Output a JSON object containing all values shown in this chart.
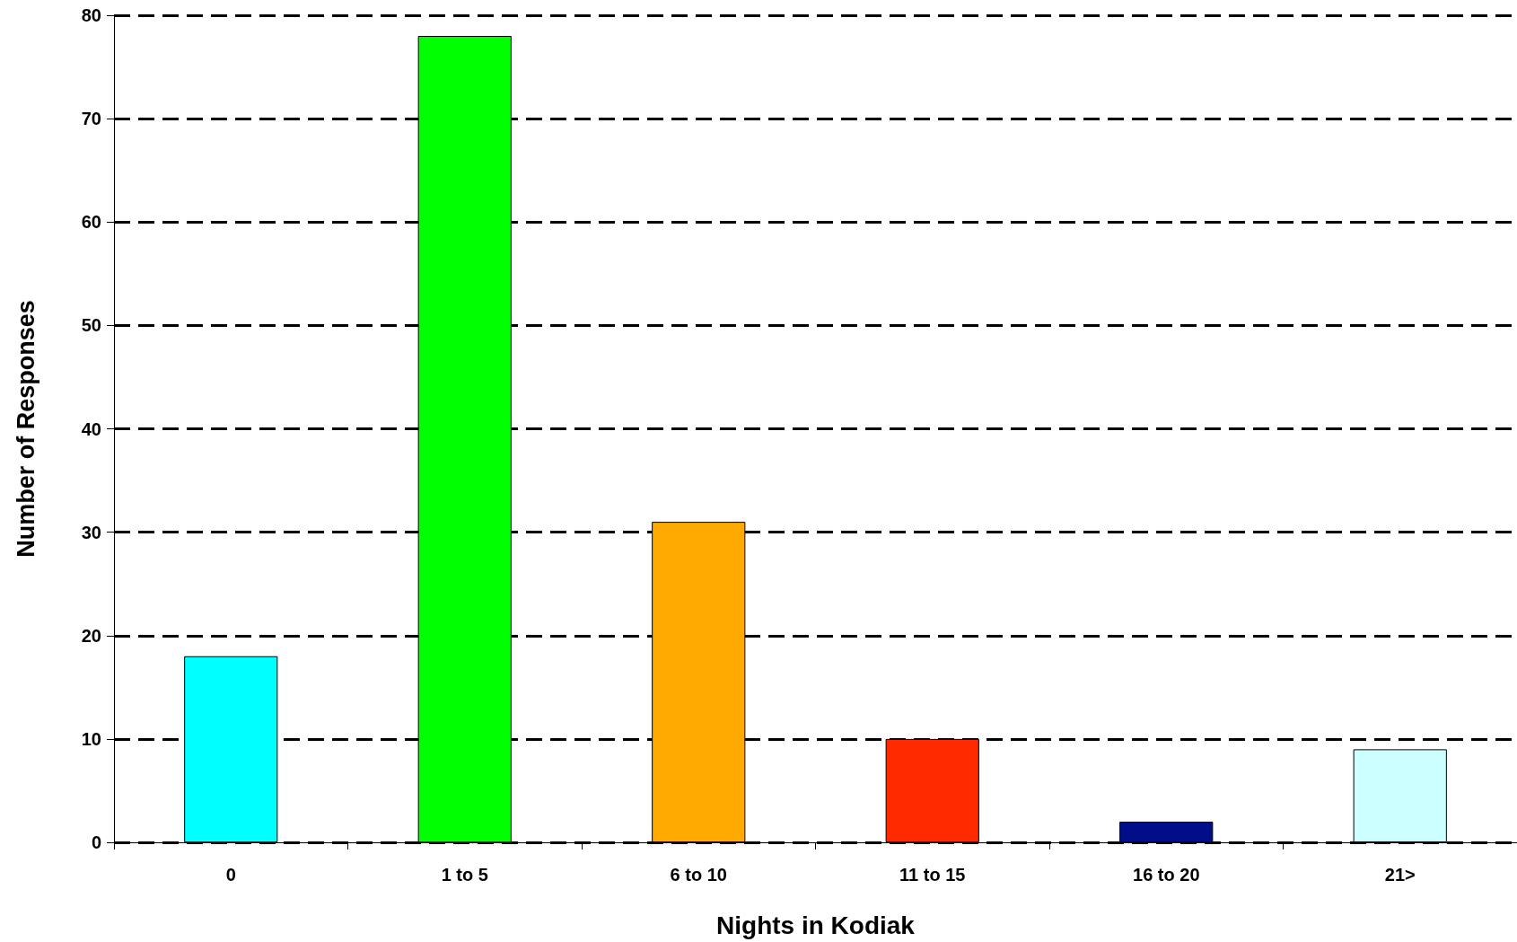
{
  "chart_data": {
    "type": "bar",
    "xlabel": "Nights in Kodiak",
    "ylabel": "Number of Responses",
    "categories": [
      "0",
      "1 to 5",
      "6 to 10",
      "11 to 15",
      "16 to 20",
      "21>"
    ],
    "values": [
      18,
      78,
      31,
      10,
      2,
      9
    ],
    "colors": [
      "#00ffff",
      "#00ff00",
      "#ffaa00",
      "#ff2a00",
      "#000e8a",
      "#ccffff"
    ],
    "ylim": [
      0,
      80
    ],
    "yticks": [
      0,
      10,
      20,
      30,
      40,
      50,
      60,
      70,
      80
    ],
    "grid": "y"
  }
}
